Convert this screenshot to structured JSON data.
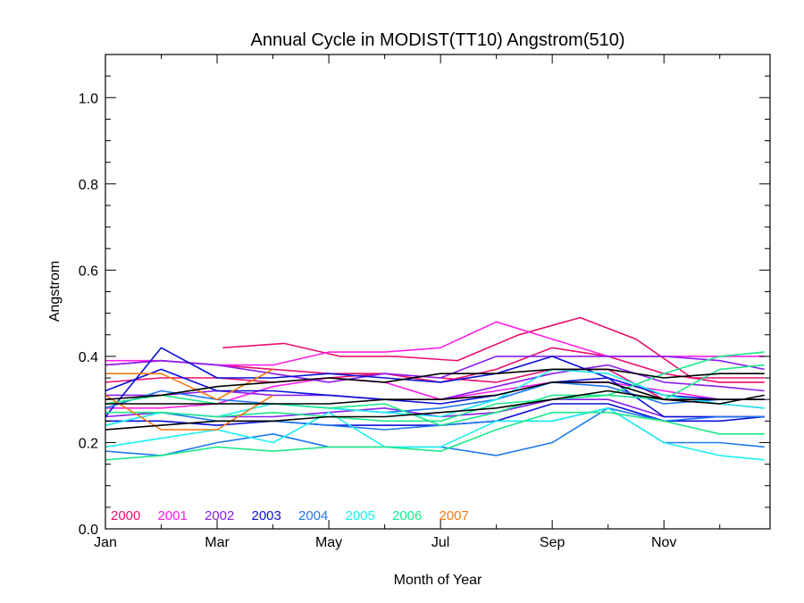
{
  "chart_data": {
    "type": "line",
    "title": "Annual Cycle in MODIST(TT10) Angstrom(510)",
    "xlabel": "Month of Year",
    "ylabel": "Angstrom",
    "xlim": [
      1,
      12.9
    ],
    "ylim": [
      0.0,
      1.1
    ],
    "x_ticks": [
      {
        "value": 1,
        "label": "Jan"
      },
      {
        "value": 3,
        "label": "Mar"
      },
      {
        "value": 5,
        "label": "May"
      },
      {
        "value": 7,
        "label": "Jul"
      },
      {
        "value": 9,
        "label": "Sep"
      },
      {
        "value": 11,
        "label": "Nov"
      }
    ],
    "y_ticks": [
      {
        "value": 0.0,
        "label": "0.0"
      },
      {
        "value": 0.2,
        "label": "0.2"
      },
      {
        "value": 0.4,
        "label": "0.4"
      },
      {
        "value": 0.6,
        "label": "0.6"
      },
      {
        "value": 0.8,
        "label": "0.8"
      },
      {
        "value": 1.0,
        "label": "1.0"
      }
    ],
    "legend": [
      {
        "label": "2000",
        "color": "#e8106e"
      },
      {
        "label": "2001",
        "color": "#ff1ee8"
      },
      {
        "label": "2002",
        "color": "#8a1ef0"
      },
      {
        "label": "2003",
        "color": "#0a10d8"
      },
      {
        "label": "2004",
        "color": "#1e78f0"
      },
      {
        "label": "2005",
        "color": "#1ef0f0"
      },
      {
        "label": "2006",
        "color": "#1ee88a"
      },
      {
        "label": "2007",
        "color": "#f07a10"
      }
    ],
    "legend_position": "bottom-left",
    "series": [
      {
        "color": "#e8106e",
        "x": [
          3.1,
          4.2,
          5.2,
          6.2,
          7.3,
          8.4,
          9.5,
          10.5,
          11.5,
          12.8
        ],
        "y": [
          0.42,
          0.43,
          0.4,
          0.4,
          0.39,
          0.45,
          0.49,
          0.44,
          0.35,
          0.35
        ]
      },
      {
        "color": "#e8106e",
        "x": [
          1,
          2,
          3,
          4,
          5,
          6,
          7,
          8,
          9,
          10,
          11,
          12,
          12.8
        ],
        "y": [
          0.38,
          0.39,
          0.38,
          0.37,
          0.36,
          0.36,
          0.34,
          0.37,
          0.42,
          0.4,
          0.36,
          0.34,
          0.34
        ]
      },
      {
        "color": "#e8106e",
        "x": [
          1,
          2,
          3,
          4,
          5,
          6,
          7,
          8,
          9,
          10,
          11,
          12,
          12.8
        ],
        "y": [
          0.34,
          0.35,
          0.35,
          0.34,
          0.35,
          0.36,
          0.35,
          0.34,
          0.37,
          0.37,
          0.3,
          0.29,
          0.28
        ]
      },
      {
        "color": "#ff1ee8",
        "x": [
          1,
          2,
          3,
          4,
          5,
          6,
          7,
          8,
          9,
          10,
          11,
          12,
          12.8
        ],
        "y": [
          0.39,
          0.39,
          0.38,
          0.38,
          0.41,
          0.41,
          0.42,
          0.48,
          0.44,
          0.4,
          0.4,
          0.4,
          0.4
        ]
      },
      {
        "color": "#ff1ee8",
        "x": [
          1,
          2,
          3,
          4,
          5,
          6,
          7,
          8,
          9,
          10,
          11,
          12,
          12.8
        ],
        "y": [
          0.28,
          0.28,
          0.29,
          0.33,
          0.35,
          0.34,
          0.3,
          0.32,
          0.34,
          0.34,
          0.32,
          0.3,
          0.3
        ]
      },
      {
        "color": "#8a1ef0",
        "x": [
          1,
          2,
          3,
          4,
          5,
          6,
          7,
          8,
          9,
          10,
          11,
          12,
          12.8
        ],
        "y": [
          0.38,
          0.39,
          0.38,
          0.36,
          0.34,
          0.36,
          0.35,
          0.4,
          0.4,
          0.4,
          0.4,
          0.39,
          0.37
        ]
      },
      {
        "color": "#8a1ef0",
        "x": [
          1,
          2,
          3,
          4,
          5,
          6,
          7,
          8,
          9,
          10,
          11,
          12,
          12.8
        ],
        "y": [
          0.26,
          0.27,
          0.26,
          0.26,
          0.27,
          0.28,
          0.26,
          0.27,
          0.3,
          0.3,
          0.26,
          0.26,
          0.26
        ]
      },
      {
        "color": "#8a1ef0",
        "x": [
          1,
          2,
          3,
          4,
          5,
          6,
          7,
          8,
          9,
          10,
          11,
          12,
          12.8
        ],
        "y": [
          0.31,
          0.31,
          0.32,
          0.31,
          0.31,
          0.3,
          0.3,
          0.33,
          0.36,
          0.38,
          0.34,
          0.33,
          0.32
        ]
      },
      {
        "color": "#0a10d8",
        "x": [
          1,
          2,
          3,
          4,
          5,
          6,
          7,
          8,
          9,
          10,
          11,
          12,
          12.8
        ],
        "y": [
          0.26,
          0.42,
          0.35,
          0.35,
          0.36,
          0.35,
          0.34,
          0.36,
          0.4,
          0.35,
          0.26,
          0.26,
          0.26
        ]
      },
      {
        "color": "#0a10d8",
        "x": [
          1,
          2,
          3,
          4,
          5,
          6,
          7,
          8,
          9,
          10,
          11,
          12,
          12.8
        ],
        "y": [
          0.32,
          0.37,
          0.32,
          0.32,
          0.31,
          0.3,
          0.29,
          0.31,
          0.34,
          0.35,
          0.31,
          0.3,
          0.3
        ]
      },
      {
        "color": "#0a10d8",
        "x": [
          1,
          2,
          3,
          4,
          5,
          6,
          7,
          8,
          9,
          10,
          11,
          12,
          12.8
        ],
        "y": [
          0.25,
          0.25,
          0.24,
          0.25,
          0.24,
          0.24,
          0.24,
          0.25,
          0.29,
          0.29,
          0.25,
          0.25,
          0.26
        ]
      },
      {
        "color": "#1e78f0",
        "x": [
          1,
          2,
          3,
          4,
          5,
          6,
          7,
          8,
          9,
          10,
          11,
          12,
          12.8
        ],
        "y": [
          0.18,
          0.17,
          0.2,
          0.22,
          0.19,
          0.19,
          0.19,
          0.17,
          0.2,
          0.28,
          0.2,
          0.2,
          0.19
        ]
      },
      {
        "color": "#1e78f0",
        "x": [
          1,
          2,
          3,
          4,
          5,
          6,
          7,
          8,
          9,
          10,
          11,
          12,
          12.8
        ],
        "y": [
          0.24,
          0.27,
          0.25,
          0.25,
          0.24,
          0.23,
          0.24,
          0.25,
          0.25,
          0.28,
          0.25,
          0.26,
          0.26
        ]
      },
      {
        "color": "#1e78f0",
        "x": [
          1,
          2,
          3,
          4,
          5,
          6,
          7,
          8,
          9,
          10,
          11,
          12,
          12.8
        ],
        "y": [
          0.28,
          0.32,
          0.3,
          0.29,
          0.28,
          0.27,
          0.28,
          0.3,
          0.34,
          0.33,
          0.29,
          0.3,
          0.3
        ]
      },
      {
        "color": "#1ef0f0",
        "x": [
          1,
          2,
          3,
          4,
          5,
          6,
          7,
          8,
          9,
          10,
          11,
          12,
          12.8
        ],
        "y": [
          0.19,
          0.21,
          0.23,
          0.2,
          0.27,
          0.19,
          0.19,
          0.25,
          0.25,
          0.28,
          0.2,
          0.17,
          0.16
        ]
      },
      {
        "color": "#1ef0f0",
        "x": [
          1,
          2,
          3,
          4,
          5,
          6,
          7,
          8,
          9,
          10,
          11,
          12,
          12.8
        ],
        "y": [
          0.24,
          0.27,
          0.26,
          0.29,
          0.28,
          0.27,
          0.26,
          0.3,
          0.37,
          0.36,
          0.31,
          0.29,
          0.28
        ]
      },
      {
        "color": "#1ee88a",
        "x": [
          1,
          2,
          3,
          4,
          5,
          6,
          7,
          8,
          9,
          10,
          11,
          12,
          12.8
        ],
        "y": [
          0.16,
          0.17,
          0.19,
          0.18,
          0.19,
          0.19,
          0.18,
          0.23,
          0.27,
          0.27,
          0.25,
          0.22,
          0.22
        ]
      },
      {
        "color": "#1ee88a",
        "x": [
          1,
          2,
          3,
          4,
          5,
          6,
          7,
          8,
          9,
          10,
          11,
          12,
          12.8
        ],
        "y": [
          0.29,
          0.31,
          0.29,
          0.29,
          0.28,
          0.29,
          0.24,
          0.27,
          0.31,
          0.31,
          0.36,
          0.4,
          0.41
        ]
      },
      {
        "color": "#1ee88a",
        "x": [
          1,
          2,
          3,
          4,
          5,
          6,
          7,
          8,
          9,
          10,
          11,
          12,
          12.8
        ],
        "y": [
          0.27,
          0.27,
          0.26,
          0.27,
          0.26,
          0.25,
          0.25,
          0.29,
          0.3,
          0.31,
          0.3,
          0.37,
          0.38
        ]
      },
      {
        "color": "#f07a10",
        "x": [
          1,
          2,
          3,
          4
        ],
        "y": [
          0.36,
          0.36,
          0.3,
          0.37
        ]
      },
      {
        "color": "#f07a10",
        "x": [
          1,
          2,
          3,
          4
        ],
        "y": [
          0.31,
          0.23,
          0.23,
          0.31
        ]
      },
      {
        "color": "#000000",
        "x": [
          1,
          2,
          3,
          4,
          5,
          6,
          7,
          8,
          9,
          10,
          11,
          12,
          12.8
        ],
        "y": [
          0.23,
          0.24,
          0.25,
          0.25,
          0.26,
          0.26,
          0.27,
          0.28,
          0.3,
          0.32,
          0.3,
          0.29,
          0.31
        ]
      },
      {
        "color": "#000000",
        "x": [
          1,
          2,
          3,
          4,
          5,
          6,
          7,
          8,
          9,
          10,
          11,
          12,
          12.8
        ],
        "y": [
          0.3,
          0.31,
          0.33,
          0.34,
          0.35,
          0.34,
          0.36,
          0.36,
          0.37,
          0.37,
          0.35,
          0.36,
          0.36
        ]
      },
      {
        "color": "#000000",
        "x": [
          1,
          2,
          3,
          4,
          5,
          6,
          7,
          8,
          9,
          10,
          11,
          12,
          12.8
        ],
        "y": [
          0.29,
          0.29,
          0.29,
          0.29,
          0.29,
          0.3,
          0.3,
          0.31,
          0.34,
          0.34,
          0.3,
          0.3,
          0.3
        ]
      }
    ]
  }
}
